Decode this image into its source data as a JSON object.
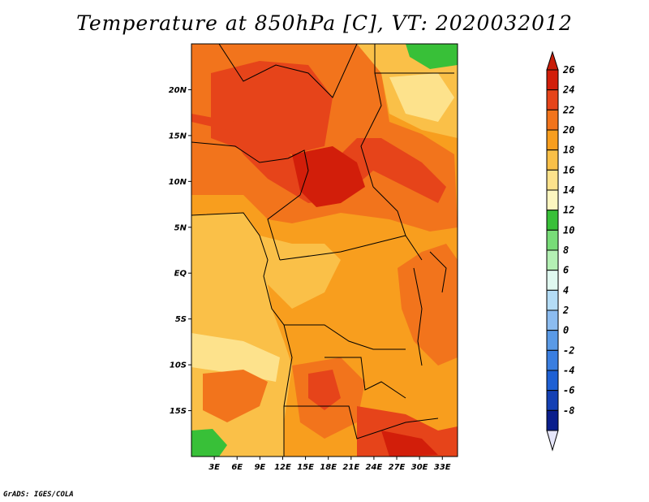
{
  "title": "Temperature at 850hPa [C], VT: 2020032012",
  "credit": "GrADS: IGES/COLA",
  "map": {
    "lon_range": [
      0,
      35
    ],
    "lat_range": [
      -20,
      25
    ],
    "lat_ticks": [
      {
        "label": "20N",
        "value": 20
      },
      {
        "label": "15N",
        "value": 15
      },
      {
        "label": "10N",
        "value": 10
      },
      {
        "label": "5N",
        "value": 5
      },
      {
        "label": "EQ",
        "value": 0
      },
      {
        "label": "5S",
        "value": -5
      },
      {
        "label": "10S",
        "value": -10
      },
      {
        "label": "15S",
        "value": -15
      }
    ],
    "lon_ticks": [
      {
        "label": "3E",
        "value": 3
      },
      {
        "label": "6E",
        "value": 6
      },
      {
        "label": "9E",
        "value": 9
      },
      {
        "label": "12E",
        "value": 12
      },
      {
        "label": "15E",
        "value": 15
      },
      {
        "label": "18E",
        "value": 18
      },
      {
        "label": "21E",
        "value": 21
      },
      {
        "label": "24E",
        "value": 24
      },
      {
        "label": "27E",
        "value": 27
      },
      {
        "label": "30E",
        "value": 30
      },
      {
        "label": "33E",
        "value": 33
      }
    ]
  },
  "colorbar": {
    "levels": [
      {
        "label": "26",
        "color": "#d21e0a"
      },
      {
        "label": "24",
        "color": "#e6441a"
      },
      {
        "label": "22",
        "color": "#f2741c"
      },
      {
        "label": "20",
        "color": "#f89e1e"
      },
      {
        "label": "18",
        "color": "#fac048"
      },
      {
        "label": "16",
        "color": "#fde28c"
      },
      {
        "label": "14",
        "color": "#fdf6c0"
      },
      {
        "label": "12",
        "color": "#38c038"
      },
      {
        "label": "10",
        "color": "#78dc78"
      },
      {
        "label": "8",
        "color": "#b4f0b4"
      },
      {
        "label": "6",
        "color": "#e0f8f0"
      },
      {
        "label": "4",
        "color": "#b4dcf6"
      },
      {
        "label": "2",
        "color": "#8cbcf0"
      },
      {
        "label": "0",
        "color": "#5a9ae6"
      },
      {
        "label": "-2",
        "color": "#3a7ee0"
      },
      {
        "label": "-4",
        "color": "#1e60d4"
      },
      {
        "label": "-6",
        "color": "#1440b4"
      },
      {
        "label": "-8",
        "color": "#0a1e8c"
      }
    ],
    "top_triangle_color": "#c81e0a",
    "bottom_triangle_color": "#e6e6fa"
  }
}
